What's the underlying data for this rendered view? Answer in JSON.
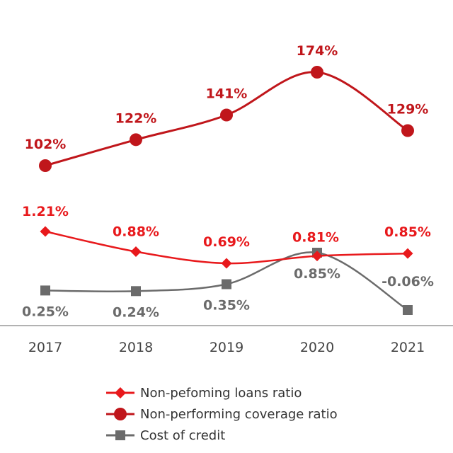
{
  "chart_data": {
    "type": "line",
    "title": "",
    "xlabel": "",
    "ylabel": "",
    "categories": [
      "2017",
      "2018",
      "2019",
      "2020",
      "2021"
    ],
    "grid": false,
    "legend": "bottom",
    "series": [
      {
        "name": "Non-pefoming loans ratio",
        "values": [
          1.21,
          0.88,
          0.69,
          0.81,
          0.85
        ],
        "labels": [
          "1.21%",
          "0.88%",
          "0.69%",
          "0.81%",
          "0.85%"
        ],
        "marker": "diamond",
        "color": "#e8191c"
      },
      {
        "name": "Non-performing coverage ratio",
        "values": [
          102,
          122,
          141,
          174,
          129
        ],
        "labels": [
          "102%",
          "122%",
          "141%",
          "174%",
          "129%"
        ],
        "marker": "circle",
        "color": "#c0161b"
      },
      {
        "name": "Cost of credit",
        "values": [
          0.25,
          0.24,
          0.35,
          0.85,
          -0.06
        ],
        "labels": [
          "0.25%",
          "0.24%",
          "0.35%",
          "0.85%",
          "-0.06%"
        ],
        "marker": "square",
        "color": "#6b6b6b"
      }
    ]
  }
}
